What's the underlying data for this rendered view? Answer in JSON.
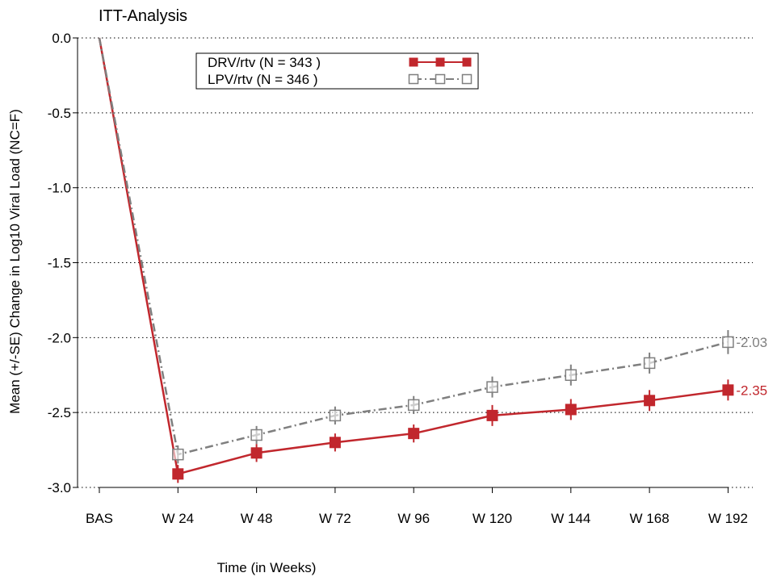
{
  "chart_data": {
    "type": "line",
    "title": "ITT-Analysis",
    "xlabel": "Time (in Weeks)",
    "ylabel": "Mean (+/-SE) Change in Log10 Viral Load (NC=F)",
    "categories": [
      "BAS",
      "W 24",
      "W 48",
      "W 72",
      "W 96",
      "W 120",
      "W 144",
      "W 168",
      "W 192"
    ],
    "yticks": [
      "0.0",
      "-0.5",
      "-1.0",
      "-1.5",
      "-2.0",
      "-2.5",
      "-3.0"
    ],
    "ytick_values": [
      0.0,
      -0.5,
      -1.0,
      -1.5,
      -2.0,
      -2.5,
      -3.0
    ],
    "ylim": [
      -3.0,
      0.0
    ],
    "grid": "horizontal-dotted",
    "legend_position": "top-left",
    "series": [
      {
        "name": "DRV/rtv (N = 343 )",
        "color": "#c1272d",
        "marker": "filled-square",
        "line": "solid",
        "values": [
          0.0,
          -2.91,
          -2.77,
          -2.7,
          -2.64,
          -2.52,
          -2.48,
          -2.42,
          -2.35
        ],
        "se": [
          0.0,
          0.06,
          0.06,
          0.06,
          0.06,
          0.07,
          0.07,
          0.07,
          0.07
        ],
        "end_label": "-2.35"
      },
      {
        "name": "LPV/rtv (N = 346 )",
        "color": "#7f7f7f",
        "marker": "open-square",
        "line": "dash-dot",
        "values": [
          0.0,
          -2.78,
          -2.65,
          -2.52,
          -2.45,
          -2.33,
          -2.25,
          -2.17,
          -2.03
        ],
        "se": [
          0.0,
          0.06,
          0.06,
          0.06,
          0.06,
          0.07,
          0.07,
          0.07,
          0.08
        ],
        "end_label": "-2.03"
      }
    ]
  }
}
